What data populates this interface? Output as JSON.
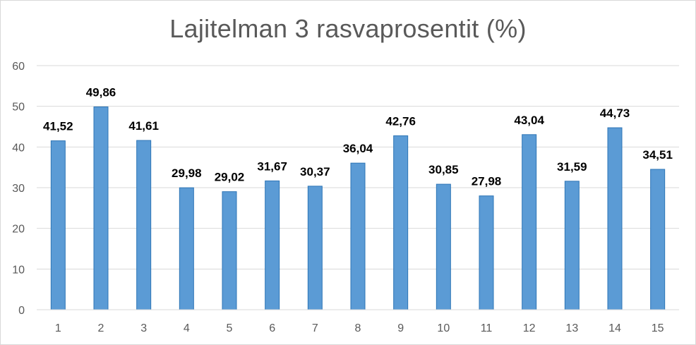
{
  "chart_data": {
    "type": "bar",
    "title": "Lajitelman 3 rasvaprosentit (%)",
    "xlabel": "",
    "ylabel": "",
    "categories": [
      "1",
      "2",
      "3",
      "4",
      "5",
      "6",
      "7",
      "8",
      "9",
      "10",
      "11",
      "12",
      "13",
      "14",
      "15"
    ],
    "values": [
      41.52,
      49.86,
      41.61,
      29.98,
      29.02,
      31.67,
      30.37,
      36.04,
      42.76,
      30.85,
      27.98,
      43.04,
      31.59,
      44.73,
      34.51
    ],
    "data_labels": [
      "41,52",
      "49,86",
      "41,61",
      "29,98",
      "29,02",
      "31,67",
      "30,37",
      "36,04",
      "42,76",
      "30,85",
      "27,98",
      "43,04",
      "31,59",
      "44,73",
      "34,51"
    ],
    "y_ticks": [
      "0",
      "10",
      "20",
      "30",
      "40",
      "50",
      "60"
    ],
    "ylim": [
      0,
      60
    ],
    "grid": true,
    "legend": "none",
    "bar_color": "#5b9bd5",
    "bar_border_color": "#2e75b6",
    "grid_color": "#d9d9d9"
  }
}
